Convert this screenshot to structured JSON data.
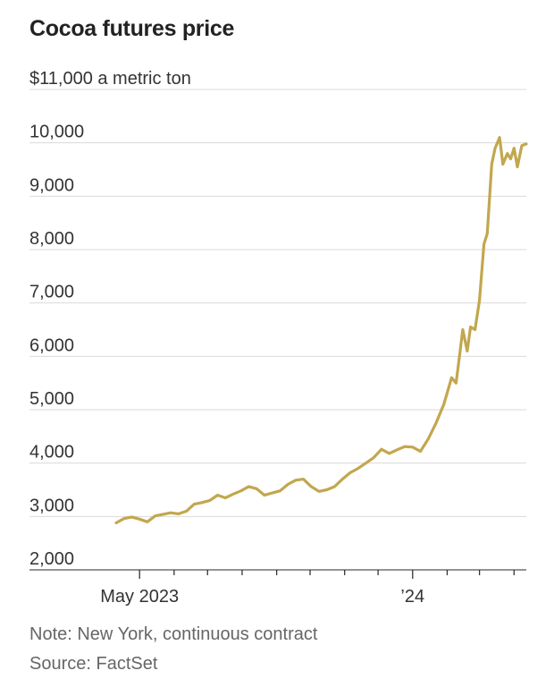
{
  "title": "Cocoa futures price",
  "note": "Note: New York, continuous contract",
  "source": "Source: FactSet",
  "chart_data": {
    "type": "line",
    "title": "Cocoa futures price",
    "ylabel": "$11,000 a metric ton",
    "y_tick_labels": [
      "$11,000 a metric ton",
      "10,000",
      "9,000",
      "8,000",
      "7,000",
      "6,000",
      "5,000",
      "4,000",
      "3,000",
      "2,000"
    ],
    "y_tick_values": [
      11000,
      10000,
      9000,
      8000,
      7000,
      6000,
      5000,
      4000,
      3000,
      2000
    ],
    "ylim": [
      2000,
      11000
    ],
    "xlim": [
      "2023-04-10",
      "2024-04-12"
    ],
    "x_tick_labels": [
      {
        "label": "May 2023",
        "date": "2023-05-01"
      },
      {
        "label": "’24",
        "date": "2024-01-01"
      }
    ],
    "grid": true,
    "line_color": "#C2A74E",
    "series": [
      {
        "points": [
          [
            "2023-04-10",
            2880
          ],
          [
            "2023-04-17",
            2960
          ],
          [
            "2023-04-24",
            2990
          ],
          [
            "2023-05-01",
            2950
          ],
          [
            "2023-05-08",
            2900
          ],
          [
            "2023-05-15",
            3010
          ],
          [
            "2023-05-22",
            3040
          ],
          [
            "2023-05-29",
            3070
          ],
          [
            "2023-06-05",
            3050
          ],
          [
            "2023-06-12",
            3100
          ],
          [
            "2023-06-19",
            3230
          ],
          [
            "2023-06-26",
            3260
          ],
          [
            "2023-07-03",
            3300
          ],
          [
            "2023-07-10",
            3400
          ],
          [
            "2023-07-17",
            3350
          ],
          [
            "2023-07-24",
            3420
          ],
          [
            "2023-07-31",
            3480
          ],
          [
            "2023-08-07",
            3560
          ],
          [
            "2023-08-14",
            3520
          ],
          [
            "2023-08-21",
            3400
          ],
          [
            "2023-08-28",
            3440
          ],
          [
            "2023-09-04",
            3480
          ],
          [
            "2023-09-11",
            3600
          ],
          [
            "2023-09-18",
            3680
          ],
          [
            "2023-09-25",
            3700
          ],
          [
            "2023-10-02",
            3560
          ],
          [
            "2023-10-09",
            3470
          ],
          [
            "2023-10-16",
            3500
          ],
          [
            "2023-10-23",
            3560
          ],
          [
            "2023-10-30",
            3700
          ],
          [
            "2023-11-06",
            3820
          ],
          [
            "2023-11-13",
            3900
          ],
          [
            "2023-11-20",
            4000
          ],
          [
            "2023-11-27",
            4100
          ],
          [
            "2023-12-04",
            4260
          ],
          [
            "2023-12-11",
            4180
          ],
          [
            "2023-12-18",
            4250
          ],
          [
            "2023-12-25",
            4310
          ],
          [
            "2024-01-01",
            4300
          ],
          [
            "2024-01-08",
            4220
          ],
          [
            "2024-01-15",
            4450
          ],
          [
            "2024-01-22",
            4750
          ],
          [
            "2024-01-29",
            5100
          ],
          [
            "2024-02-05",
            5600
          ],
          [
            "2024-02-09",
            5500
          ],
          [
            "2024-02-12",
            6000
          ],
          [
            "2024-02-15",
            6500
          ],
          [
            "2024-02-19",
            6100
          ],
          [
            "2024-02-22",
            6550
          ],
          [
            "2024-02-26",
            6500
          ],
          [
            "2024-03-01",
            7050
          ],
          [
            "2024-03-05",
            8100
          ],
          [
            "2024-03-08",
            8300
          ],
          [
            "2024-03-12",
            9600
          ],
          [
            "2024-03-15",
            9900
          ],
          [
            "2024-03-19",
            10100
          ],
          [
            "2024-03-22",
            9600
          ],
          [
            "2024-03-26",
            9800
          ],
          [
            "2024-03-29",
            9700
          ],
          [
            "2024-04-01",
            9900
          ],
          [
            "2024-04-04",
            9550
          ],
          [
            "2024-04-08",
            9950
          ],
          [
            "2024-04-12",
            9980
          ]
        ]
      }
    ]
  }
}
